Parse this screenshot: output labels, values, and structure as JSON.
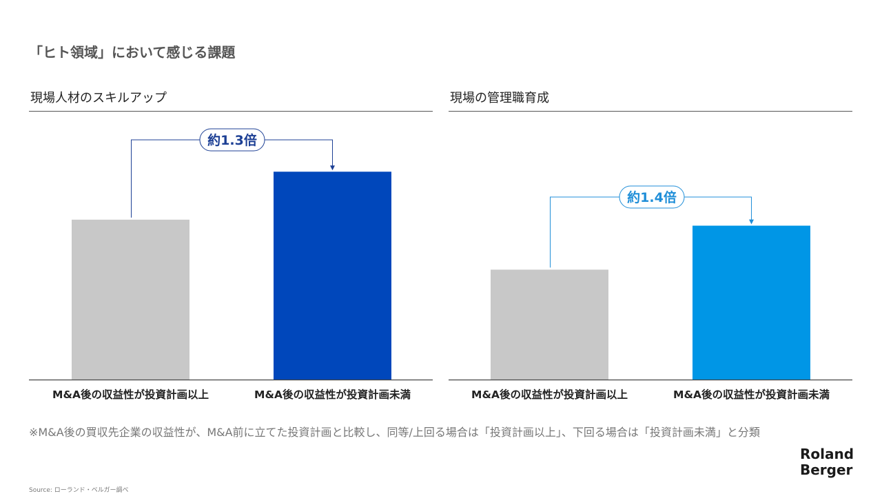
{
  "page": {
    "title": "「ヒト領域」において感じる課題",
    "footnote": "※M&A後の買収先企業の収益性が、M&A前に立てた投資計画と比較し、同等/上回る場合は「投資計画以上」、下回る場合は「投資計画未満」と分類",
    "source": "Source: ローランド・ベルガー調べ",
    "logo": {
      "line1": "Roland",
      "line2": "Berger"
    }
  },
  "colors": {
    "gray_bar": "#c8c8c8",
    "dark_blue": "#0047bb",
    "light_blue": "#0096e6",
    "dark_blue_text": "#1c3f94",
    "light_blue_text": "#1f8ed8"
  },
  "chart_data": [
    {
      "type": "bar",
      "title": "現場人材のスキルアップ",
      "categories": [
        "M&A後の収益性が投資計画以上",
        "M&A後の収益性が投資計画未満"
      ],
      "values": [
        1.0,
        1.3
      ],
      "ylim": [
        0,
        1.65
      ],
      "annotation": "約1.3倍",
      "bar_colors": [
        "#c8c8c8",
        "#0047bb"
      ],
      "annotation_color": "#1c3f94",
      "grid": false,
      "legend": "none"
    },
    {
      "type": "bar",
      "title": "現場の管理職育成",
      "categories": [
        "M&A後の収益性が投資計画以上",
        "M&A後の収益性が投資計画未満"
      ],
      "values": [
        1.0,
        1.4
      ],
      "ylim": [
        0,
        2.4
      ],
      "annotation": "約1.4倍",
      "bar_colors": [
        "#c8c8c8",
        "#0096e6"
      ],
      "annotation_color": "#1f8ed8",
      "grid": false,
      "legend": "none"
    }
  ]
}
